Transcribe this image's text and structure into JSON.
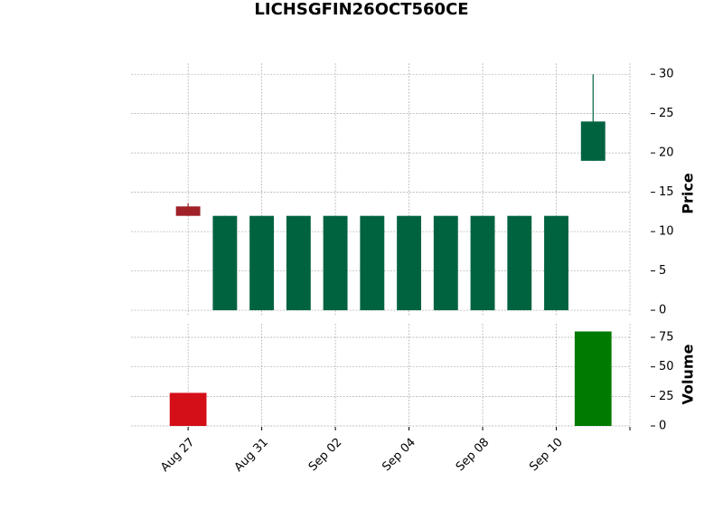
{
  "chart_data": {
    "type": "candlestick",
    "title": "LICHSGFIN26OCT560CE",
    "categories": [
      "Aug 27",
      null,
      "Aug 31",
      null,
      "Sep 02",
      null,
      "Sep 04",
      null,
      "Sep 08",
      null,
      "Sep 10",
      null
    ],
    "open": [
      13.2,
      0,
      0,
      0,
      0,
      0,
      0,
      0,
      0,
      0,
      0,
      19
    ],
    "high": [
      13.6,
      12,
      12,
      12,
      12,
      12,
      12,
      12,
      12,
      12,
      12,
      30
    ],
    "low": [
      12,
      0,
      0,
      0,
      0,
      0,
      0,
      0,
      0,
      0,
      0,
      19
    ],
    "close": [
      12,
      12,
      12,
      12,
      12,
      12,
      12,
      12,
      12,
      12,
      12,
      24
    ],
    "volume": [
      28,
      0,
      0,
      0,
      0,
      0,
      0,
      0,
      0,
      0,
      0,
      80
    ],
    "up_color": "#006340",
    "down_color": "#a02128",
    "volume_up_color": "#007a00",
    "volume_down_color": "#d40f18",
    "xlim": [
      -1.55,
      12
    ],
    "xticks": [
      0,
      2,
      4,
      6,
      8,
      10,
      12
    ],
    "ylabel": "Price",
    "ylim": [
      -0.8,
      31.4
    ],
    "yticks": [
      0,
      5,
      10,
      15,
      20,
      25,
      30
    ],
    "y2label": "Volume",
    "y2lim": [
      0,
      86.5
    ],
    "y2ticks": [
      0,
      25,
      50,
      75
    ],
    "grid": true
  }
}
